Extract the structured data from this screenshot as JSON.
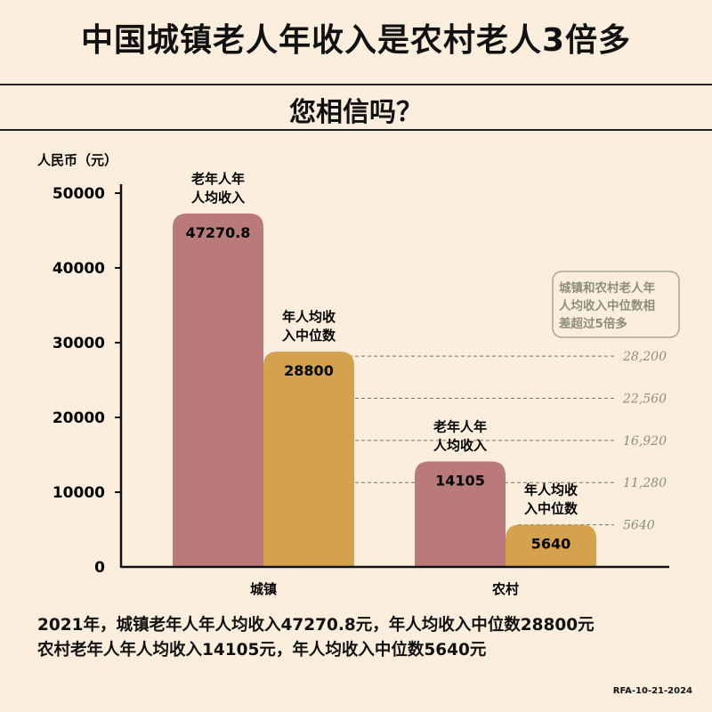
{
  "title": "中国城镇老人年收入是农村老人3倍多",
  "subtitle": "您相信吗？",
  "footer": {
    "line1": "2021年，城镇老年人年人均收入47270.8元，年人均收入中位数28800元",
    "line2": "农村老年人年人均收入14105元，年人均收入中位数5640元"
  },
  "credit": "RFA-10-21-2024",
  "colors": {
    "background": "#fbeedd",
    "mean_bar": "#b97a79",
    "median_bar": "#d4a14d",
    "guide_text": "#8e8d7d"
  },
  "chart_data": {
    "type": "bar",
    "ylabel": "人民币（元）",
    "ylim": [
      0,
      50000
    ],
    "yticks": [
      "0",
      "10000",
      "20000",
      "30000",
      "40000",
      "50000"
    ],
    "categories": [
      "城镇",
      "农村"
    ],
    "series": [
      {
        "name": "老年人年人均收入",
        "values": [
          47270.8,
          14105
        ],
        "value_labels": [
          "47270.8",
          "14105"
        ]
      },
      {
        "name": "年人均收入中位数",
        "values": [
          28800,
          5640
        ],
        "value_labels": [
          "28800",
          "5640"
        ]
      }
    ],
    "bar_labels": [
      [
        "老年人年",
        "人均收入"
      ],
      [
        "年人均收",
        "入中位数"
      ],
      [
        "老年人年",
        "人均收入"
      ],
      [
        "年人均收",
        "入中位数"
      ]
    ],
    "guides": {
      "values": [
        28200,
        22560,
        16920,
        11280,
        5640
      ],
      "labels": [
        "28,200",
        "22,560",
        "16,920",
        "11,280",
        "5640"
      ]
    },
    "annotation": [
      "城镇和农村老人年",
      "人均收入中位数相",
      "差超过5倍多"
    ],
    "grid": false,
    "legend": "none"
  }
}
